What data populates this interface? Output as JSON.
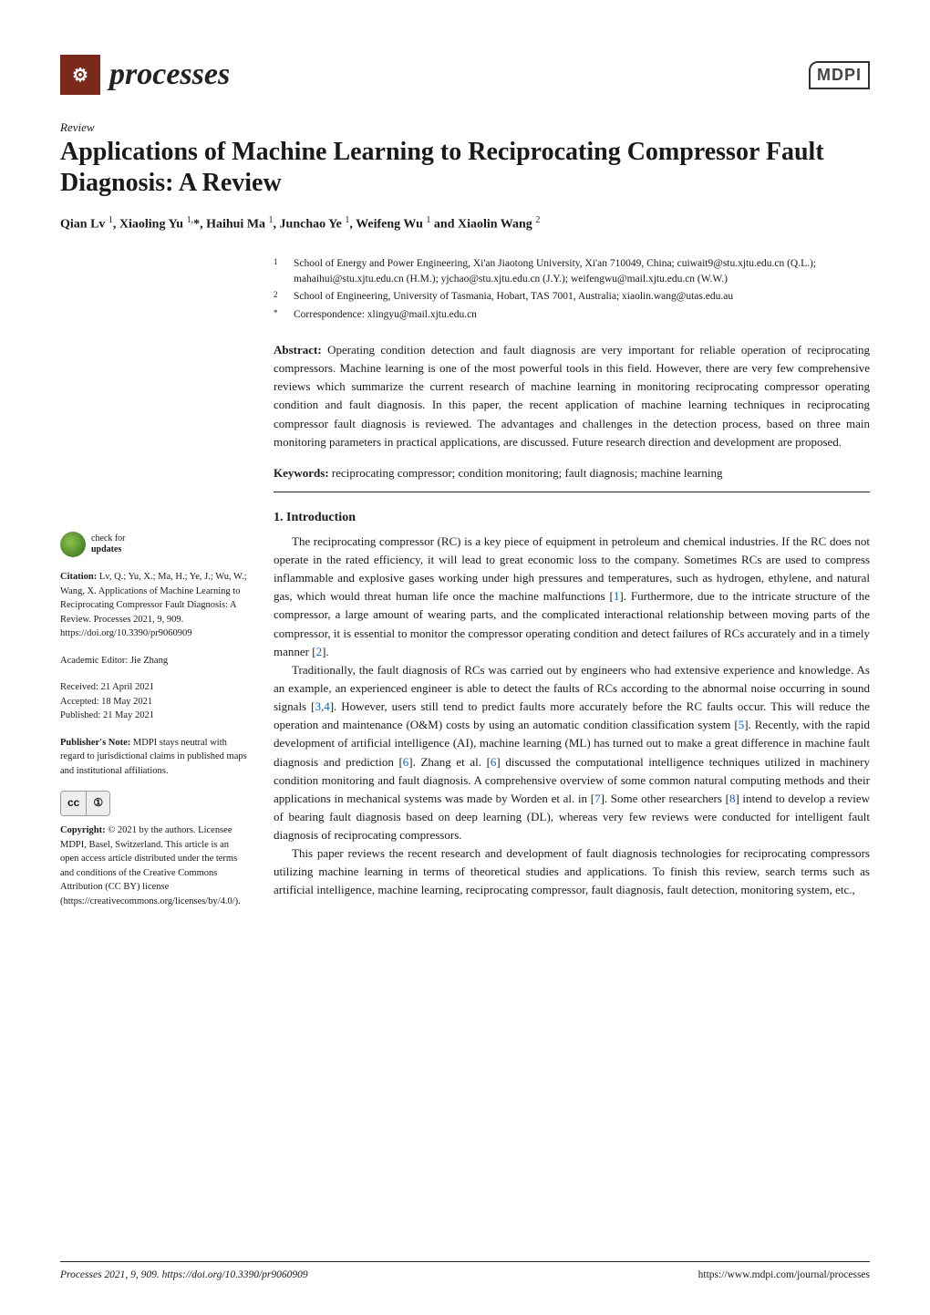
{
  "colors": {
    "background": "#ffffff",
    "text": "#1a1a1a",
    "ref_link": "#0066cc",
    "journal_mark_bg": "#7a2a1a",
    "check_gradient_from": "#8bc34a",
    "check_gradient_to": "#33691e",
    "divider": "#222222"
  },
  "fonts": {
    "body_family": "Palatino Linotype, Book Antiqua, Palatino, Georgia, serif",
    "title_size_pt": 21,
    "body_size_pt": 10,
    "sidebar_size_pt": 8
  },
  "header": {
    "journal_name": "processes",
    "journal_mark_glyph": "⚙",
    "publisher_logo": "MDPI"
  },
  "article": {
    "type": "Review",
    "title": "Applications of Machine Learning to Reciprocating Compressor Fault Diagnosis: A Review",
    "authors_html": "Qian Lv <sup>1</sup>, Xiaoling Yu <sup>1,</sup>*, Haihui Ma <sup>1</sup>, Junchao Ye <sup>1</sup>, Weifeng Wu <sup>1</sup> and Xiaolin Wang <sup>2</sup>",
    "affiliations": [
      {
        "num": "1",
        "text": "School of Energy and Power Engineering, Xi'an Jiaotong University, Xi'an 710049, China; cuiwait9@stu.xjtu.edu.cn (Q.L.); mahaihui@stu.xjtu.edu.cn (H.M.); yjchao@stu.xjtu.edu.cn (J.Y.); weifengwu@mail.xjtu.edu.cn (W.W.)"
      },
      {
        "num": "2",
        "text": "School of Engineering, University of Tasmania, Hobart, TAS 7001, Australia; xiaolin.wang@utas.edu.au"
      },
      {
        "num": "*",
        "text": "Correspondence: xlingyu@mail.xjtu.edu.cn"
      }
    ],
    "abstract_label": "Abstract:",
    "abstract": "Operating condition detection and fault diagnosis are very important for reliable operation of reciprocating compressors. Machine learning is one of the most powerful tools in this field. However, there are very few comprehensive reviews which summarize the current research of machine learning in monitoring reciprocating compressor operating condition and fault diagnosis. In this paper, the recent application of machine learning techniques in reciprocating compressor fault diagnosis is reviewed. The advantages and challenges in the detection process, based on three main monitoring parameters in practical applications, are discussed. Future research direction and development are proposed.",
    "keywords_label": "Keywords:",
    "keywords": "reciprocating compressor; condition monitoring; fault diagnosis; machine learning",
    "section1_heading": "1. Introduction",
    "paragraphs": [
      "The reciprocating compressor (RC) is a key piece of equipment in petroleum and chemical industries. If the RC does not operate in the rated efficiency, it will lead to great economic loss to the company. Sometimes RCs are used to compress inflammable and explosive gases working under high pressures and temperatures, such as hydrogen, ethylene, and natural gas, which would threat human life once the machine malfunctions [1]. Furthermore, due to the intricate structure of the compressor, a large amount of wearing parts, and the complicated interactional relationship between moving parts of the compressor, it is essential to monitor the compressor operating condition and detect failures of RCs accurately and in a timely manner [2].",
      "Traditionally, the fault diagnosis of RCs was carried out by engineers who had extensive experience and knowledge. As an example, an experienced engineer is able to detect the faults of RCs according to the abnormal noise occurring in sound signals [3,4]. However, users still tend to predict faults more accurately before the RC faults occur. This will reduce the operation and maintenance (O&M) costs by using an automatic condition classification system [5]. Recently, with the rapid development of artificial intelligence (AI), machine learning (ML) has turned out to make a great difference in machine fault diagnosis and prediction [6]. Zhang et al. [6] discussed the computational intelligence techniques utilized in machinery condition monitoring and fault diagnosis. A comprehensive overview of some common natural computing methods and their applications in mechanical systems was made by Worden et al. in [7]. Some other researchers [8] intend to develop a review of bearing fault diagnosis based on deep learning (DL), whereas very few reviews were conducted for intelligent fault diagnosis of reciprocating compressors.",
      "This paper reviews the recent research and development of fault diagnosis technologies for reciprocating compressors utilizing machine learning in terms of theoretical studies and applications. To finish this review, search terms such as artificial intelligence, machine learning, reciprocating compressor, fault diagnosis, fault detection, monitoring system, etc.,"
    ]
  },
  "sidebar": {
    "check_updates_line1": "check for",
    "check_updates_line2": "updates",
    "citation_label": "Citation:",
    "citation": "Lv, Q.; Yu, X.; Ma, H.; Ye, J.; Wu, W.; Wang, X. Applications of Machine Learning to Reciprocating Compressor Fault Diagnosis: A Review. Processes 2021, 9, 909. https://doi.org/10.3390/pr9060909",
    "editor_label": "Academic Editor:",
    "editor": "Jie Zhang",
    "received": "Received: 21 April 2021",
    "accepted": "Accepted: 18 May 2021",
    "published": "Published: 21 May 2021",
    "publishers_note_label": "Publisher's Note:",
    "publishers_note": "MDPI stays neutral with regard to jurisdictional claims in published maps and institutional affiliations.",
    "cc_left": "cc",
    "cc_right": "①",
    "copyright_label": "Copyright:",
    "copyright": "© 2021 by the authors. Licensee MDPI, Basel, Switzerland. This article is an open access article distributed under the terms and conditions of the Creative Commons Attribution (CC BY) license (https://creativecommons.org/licenses/by/4.0/)."
  },
  "footer": {
    "left": "Processes 2021, 9, 909. https://doi.org/10.3390/pr9060909",
    "right": "https://www.mdpi.com/journal/processes"
  }
}
